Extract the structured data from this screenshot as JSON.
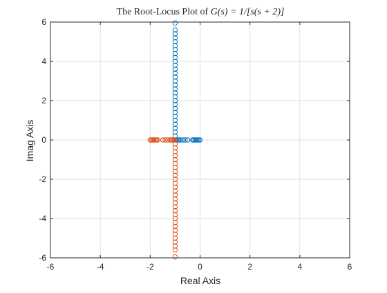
{
  "chart_data": {
    "type": "scatter",
    "title": "The Root-Locus Plot of G(s) = 1/[s(s + 2)]",
    "title_parts": {
      "prefix": "The Root-Locus Plot of ",
      "math": "G(s) = 1/[s(s + 2)]"
    },
    "xlabel": "Real Axis",
    "ylabel": "Imag Axis",
    "xlim": [
      -6,
      6
    ],
    "ylim": [
      -6,
      6
    ],
    "xticks": [
      -6,
      -4,
      -2,
      0,
      2,
      4,
      6
    ],
    "yticks": [
      -6,
      -4,
      -2,
      0,
      2,
      4,
      6
    ],
    "grid": true,
    "marker": "circle-open",
    "series": [
      {
        "color": "#0072BD",
        "points": [
          [
            0,
            0
          ],
          [
            -0.05,
            0
          ],
          [
            -0.1,
            0
          ],
          [
            -0.15,
            0
          ],
          [
            -0.2,
            0
          ],
          [
            -0.25,
            0
          ],
          [
            -0.3,
            0
          ],
          [
            -0.5,
            0
          ],
          [
            -0.6,
            0
          ],
          [
            -0.7,
            0
          ],
          [
            -0.8,
            0
          ],
          [
            -0.85,
            0
          ],
          [
            -0.9,
            0
          ],
          [
            -0.95,
            0
          ],
          [
            -1,
            0
          ],
          [
            -1,
            0.2
          ],
          [
            -1,
            0.4
          ],
          [
            -1,
            0.6
          ],
          [
            -1,
            0.8
          ],
          [
            -1,
            1.0
          ],
          [
            -1,
            1.2
          ],
          [
            -1,
            1.4
          ],
          [
            -1,
            1.6
          ],
          [
            -1,
            1.8
          ],
          [
            -1,
            2.0
          ],
          [
            -1,
            2.2
          ],
          [
            -1,
            2.4
          ],
          [
            -1,
            2.6
          ],
          [
            -1,
            2.8
          ],
          [
            -1,
            3.0
          ],
          [
            -1,
            3.2
          ],
          [
            -1,
            3.4
          ],
          [
            -1,
            3.6
          ],
          [
            -1,
            3.8
          ],
          [
            -1,
            4.0
          ],
          [
            -1,
            4.2
          ],
          [
            -1,
            4.4
          ],
          [
            -1,
            4.6
          ],
          [
            -1,
            4.8
          ],
          [
            -1,
            5.0
          ],
          [
            -1,
            5.2
          ],
          [
            -1,
            5.4
          ],
          [
            -1,
            5.6
          ],
          [
            -1,
            5.95
          ]
        ]
      },
      {
        "color": "#D95319",
        "points": [
          [
            -2,
            0
          ],
          [
            -1.95,
            0
          ],
          [
            -1.9,
            0
          ],
          [
            -1.85,
            0
          ],
          [
            -1.8,
            0
          ],
          [
            -1.75,
            0
          ],
          [
            -1.7,
            0
          ],
          [
            -1.5,
            0
          ],
          [
            -1.4,
            0
          ],
          [
            -1.3,
            0
          ],
          [
            -1.2,
            0
          ],
          [
            -1.15,
            0
          ],
          [
            -1.1,
            0
          ],
          [
            -1.05,
            0
          ],
          [
            -1,
            0
          ],
          [
            -1,
            -0.2
          ],
          [
            -1,
            -0.4
          ],
          [
            -1,
            -0.6
          ],
          [
            -1,
            -0.8
          ],
          [
            -1,
            -1.0
          ],
          [
            -1,
            -1.2
          ],
          [
            -1,
            -1.4
          ],
          [
            -1,
            -1.6
          ],
          [
            -1,
            -1.8
          ],
          [
            -1,
            -2.0
          ],
          [
            -1,
            -2.2
          ],
          [
            -1,
            -2.4
          ],
          [
            -1,
            -2.6
          ],
          [
            -1,
            -2.8
          ],
          [
            -1,
            -3.0
          ],
          [
            -1,
            -3.2
          ],
          [
            -1,
            -3.4
          ],
          [
            -1,
            -3.6
          ],
          [
            -1,
            -3.8
          ],
          [
            -1,
            -4.0
          ],
          [
            -1,
            -4.2
          ],
          [
            -1,
            -4.4
          ],
          [
            -1,
            -4.6
          ],
          [
            -1,
            -4.8
          ],
          [
            -1,
            -5.0
          ],
          [
            -1,
            -5.2
          ],
          [
            -1,
            -5.4
          ],
          [
            -1,
            -5.6
          ],
          [
            -1,
            -5.95
          ]
        ]
      }
    ]
  }
}
